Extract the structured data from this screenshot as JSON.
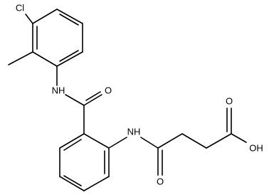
{
  "atoms": {
    "chlorine": "Cl",
    "amine_top": "NH",
    "amide_oxygen": "O",
    "amine_bottom": "NH",
    "keto_oxygen": "O",
    "acid_oxygen": "O",
    "hydroxyl": "OH"
  }
}
